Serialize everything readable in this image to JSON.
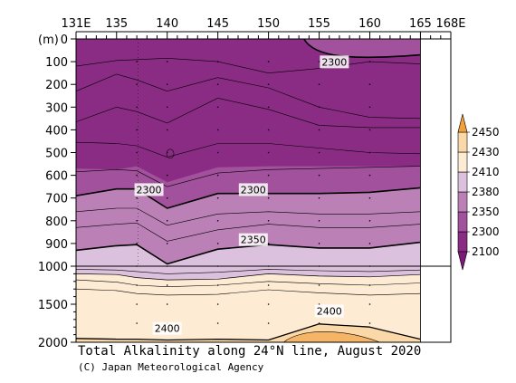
{
  "chart_data": {
    "type": "heatmap",
    "title": "Total Alkalinity along 24°N line, August 2020",
    "credit": "(C) Japan Meteorological Agency",
    "x_axis": {
      "tick_labels": [
        "131E",
        "135",
        "140",
        "145",
        "150",
        "155",
        "160",
        "165",
        "168E"
      ],
      "tick_values": [
        131,
        135,
        140,
        145,
        150,
        155,
        160,
        165,
        168
      ],
      "range": [
        131,
        168
      ],
      "data_extent": [
        131,
        165
      ]
    },
    "y_axis": {
      "unit_label": "(m)",
      "tick_labels": [
        "0",
        "100",
        "200",
        "300",
        "400",
        "500",
        "600",
        "700",
        "800",
        "900",
        "1000",
        "1500",
        "2000"
      ],
      "tick_values": [
        0,
        100,
        200,
        300,
        400,
        500,
        600,
        700,
        800,
        900,
        1000,
        1500,
        2000
      ],
      "range": [
        0,
        2000
      ],
      "scale_break_depth": 1000
    },
    "colorbar": {
      "levels": [
        2100,
        2300,
        2350,
        2380,
        2410,
        2430,
        2450
      ],
      "labels": [
        "2450",
        "2430",
        "2410",
        "2380",
        "2350",
        "2300",
        "2100"
      ],
      "colors": [
        "#8a2c84",
        "#a2519c",
        "#bb81b6",
        "#dcc1de",
        "#fdecd3",
        "#fbd8a8",
        "#f5b466"
      ],
      "extend_low_color": "#7b1a78",
      "extend_high_color": "#f0a13a"
    },
    "contour_labels": [
      {
        "text": "2300",
        "lon": 156.5,
        "depth": 105
      },
      {
        "text": "2300",
        "lon": 138.2,
        "depth": 667
      },
      {
        "text": "2300",
        "lon": 148.5,
        "depth": 667
      },
      {
        "text": "2350",
        "lon": 148.5,
        "depth": 887
      },
      {
        "text": "2400",
        "lon": 156.0,
        "depth": 1600
      },
      {
        "text": "2400",
        "lon": 140.0,
        "depth": 1830
      }
    ],
    "isolines": {
      "c2300": {
        "lon": [
          131,
          135,
          137,
          140,
          145,
          150,
          155,
          160,
          165
        ],
        "depth": [
          690,
          660,
          660,
          745,
          680,
          680,
          680,
          675,
          655
        ]
      },
      "c2350": {
        "lon": [
          131,
          135,
          137,
          140,
          145,
          150,
          155,
          160,
          165
        ],
        "depth": [
          930,
          910,
          905,
          990,
          925,
          905,
          920,
          920,
          895
        ]
      },
      "c2380": {
        "lon": [
          131,
          135,
          137,
          140,
          145,
          150,
          155,
          160,
          165
        ],
        "depth": [
          1100,
          1110,
          1150,
          1180,
          1170,
          1100,
          1130,
          1140,
          1110
        ]
      },
      "c2410": {
        "lon": [
          131,
          135,
          137,
          140,
          145,
          150,
          155,
          160,
          165
        ],
        "depth": [
          1950,
          1960,
          1960,
          1970,
          1960,
          1970,
          1760,
          1800,
          1960
        ]
      }
    }
  }
}
